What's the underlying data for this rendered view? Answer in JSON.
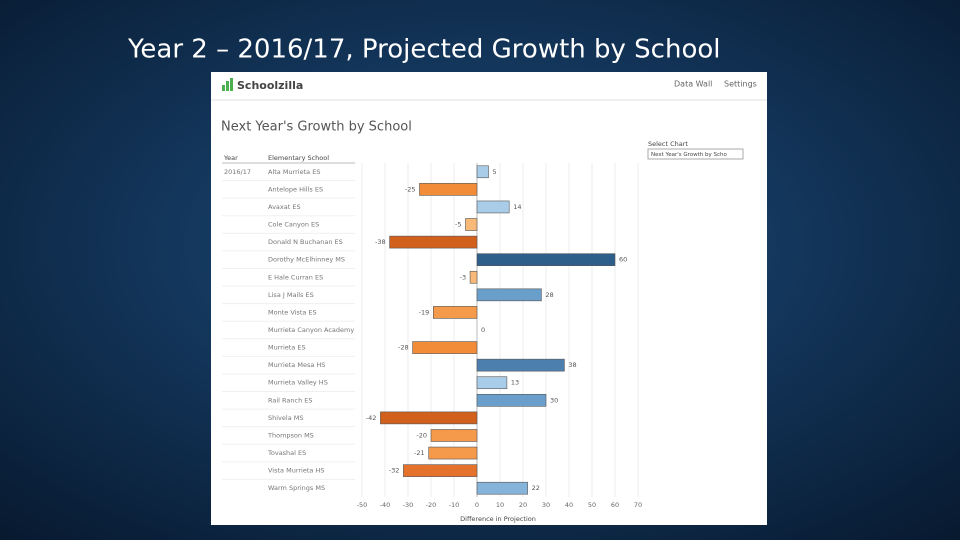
{
  "slide": {
    "title": "Year 2 – 2016/17, Projected Growth by School"
  },
  "app": {
    "logo": "Schoolzilla",
    "nav": [
      "Data Wall",
      "Settings"
    ],
    "select_label": "Select Chart",
    "select_value": "Next Year's Growth by Scho"
  },
  "chart_data": {
    "type": "bar",
    "orientation": "horizontal",
    "title": "Next Year's Growth by School",
    "columns": [
      "Year",
      "Elementary School"
    ],
    "year": "2016/17",
    "categories": [
      "Alta Murrieta ES",
      "Antelope Hills ES",
      "Avaxat ES",
      "Cole Canyon ES",
      "Donald N Buchanan ES",
      "Dorothy McElhinney MS",
      "E Hale Curran ES",
      "Lisa J Mails ES",
      "Monte Vista ES",
      "Murrieta Canyon Academy",
      "Murrieta ES",
      "Murrieta Mesa HS",
      "Murrieta Valley HS",
      "Rail Ranch ES",
      "Shivela MS",
      "Thompson MS",
      "Tovashal ES",
      "Vista Murrieta HS",
      "Warm Springs MS"
    ],
    "values": [
      5,
      -25,
      14,
      -5,
      -38,
      60,
      -3,
      28,
      -19,
      0,
      -28,
      38,
      13,
      30,
      -42,
      -20,
      -21,
      -32,
      22
    ],
    "colors": [
      "#a9cde8",
      "#f28c38",
      "#a9cde8",
      "#f8b878",
      "#d2601d",
      "#2e5f8a",
      "#f8b878",
      "#6a9fcc",
      "#f59a4a",
      "#a9cde8",
      "#f28c38",
      "#4d7fae",
      "#a9cde8",
      "#6a9fcc",
      "#d2601d",
      "#f59a4a",
      "#f59a4a",
      "#e4722a",
      "#85b3d9"
    ],
    "xlim": [
      -50,
      70
    ],
    "xticks": [
      -50,
      -40,
      -30,
      -20,
      -10,
      0,
      10,
      20,
      30,
      40,
      50,
      60,
      70
    ],
    "xlabel": "Difference in Projection",
    "grid": true
  }
}
